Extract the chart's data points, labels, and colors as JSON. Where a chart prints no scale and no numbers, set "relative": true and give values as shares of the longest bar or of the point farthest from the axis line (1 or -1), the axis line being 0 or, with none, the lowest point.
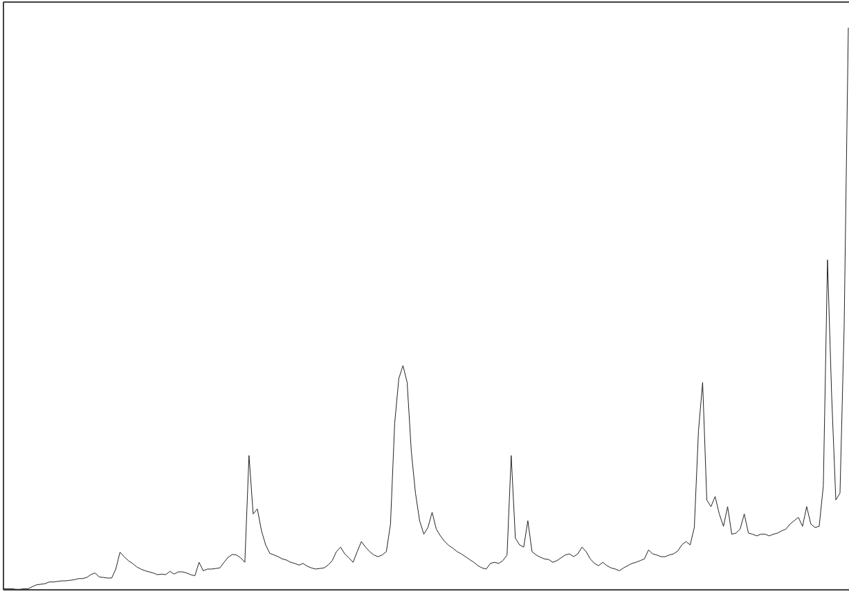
{
  "chart_data": {
    "type": "line",
    "relative": true,
    "categories": [
      null,
      null,
      null,
      null,
      null,
      null,
      null,
      null,
      null,
      null,
      null,
      null,
      null,
      null,
      null,
      null,
      null,
      null,
      null,
      null,
      null,
      null,
      null,
      null,
      null,
      null,
      null,
      null,
      null,
      null,
      null,
      null,
      null,
      null,
      null,
      null,
      null,
      null,
      null,
      null,
      null,
      null,
      null,
      null,
      null,
      null,
      null,
      null,
      null,
      null,
      null,
      null,
      null,
      null,
      null,
      null,
      null,
      null,
      null,
      null,
      null,
      null,
      null,
      null,
      null,
      null,
      null,
      null,
      null,
      null,
      null,
      null,
      null,
      null,
      null,
      null,
      null,
      null,
      null,
      null,
      null,
      null,
      null,
      null,
      null,
      null,
      null,
      null,
      null,
      null,
      null,
      null,
      null,
      null,
      null,
      null,
      null,
      null,
      null,
      null,
      null,
      null,
      null,
      null,
      null,
      null,
      null,
      null,
      null,
      null,
      null,
      null,
      null,
      null,
      null,
      null,
      null,
      null,
      null,
      null,
      null,
      null,
      null,
      null,
      null,
      null,
      null,
      null,
      null,
      null,
      null,
      null,
      null,
      null,
      null,
      null,
      null,
      null,
      null,
      null,
      null,
      null,
      null,
      null,
      null,
      null,
      null,
      null,
      null,
      null,
      null,
      null,
      null,
      null,
      null,
      null,
      null,
      null,
      null,
      null,
      null,
      null,
      null,
      null,
      null,
      null,
      null,
      null,
      null,
      null,
      null,
      null,
      null,
      null,
      null,
      null,
      null,
      null,
      null,
      null,
      null,
      null,
      null,
      null,
      null,
      null,
      null,
      null,
      null,
      null,
      null,
      null,
      null,
      null,
      null,
      null,
      null,
      null,
      null,
      null,
      null,
      null,
      null,
      null
    ],
    "series": [
      {
        "color": "#222222",
        "values": [
          0.002,
          0.002,
          0.002,
          0.001,
          0.001,
          0.002,
          0.002,
          0.006,
          0.009,
          0.01,
          0.011,
          0.014,
          0.014,
          0.015,
          0.016,
          0.016,
          0.017,
          0.018,
          0.02,
          0.02,
          0.022,
          0.027,
          0.03,
          0.023,
          0.022,
          0.021,
          0.021,
          0.037,
          0.067,
          0.059,
          0.052,
          0.047,
          0.041,
          0.037,
          0.034,
          0.032,
          0.03,
          0.027,
          0.028,
          0.027,
          0.033,
          0.028,
          0.032,
          0.032,
          0.03,
          0.027,
          0.025,
          0.049,
          0.034,
          0.037,
          0.037,
          0.038,
          0.039,
          0.049,
          0.058,
          0.063,
          0.062,
          0.057,
          0.049,
          0.239,
          0.135,
          0.144,
          0.105,
          0.08,
          0.065,
          0.062,
          0.059,
          0.055,
          0.053,
          0.049,
          0.047,
          0.044,
          0.047,
          0.042,
          0.039,
          0.037,
          0.038,
          0.039,
          0.044,
          0.052,
          0.068,
          0.076,
          0.064,
          0.057,
          0.049,
          0.068,
          0.086,
          0.076,
          0.068,
          0.062,
          0.059,
          0.062,
          0.068,
          0.117,
          0.296,
          0.376,
          0.399,
          0.369,
          0.246,
          0.172,
          0.123,
          0.099,
          0.111,
          0.138,
          0.108,
          0.096,
          0.086,
          0.079,
          0.074,
          0.068,
          0.064,
          0.059,
          0.054,
          0.049,
          0.043,
          0.039,
          0.037,
          0.047,
          0.049,
          0.047,
          0.052,
          0.062,
          0.239,
          0.092,
          0.08,
          0.076,
          0.123,
          0.068,
          0.062,
          0.058,
          0.055,
          0.054,
          0.049,
          0.052,
          0.057,
          0.062,
          0.064,
          0.059,
          0.064,
          0.076,
          0.068,
          0.055,
          0.047,
          0.043,
          0.049,
          0.043,
          0.039,
          0.037,
          0.034,
          0.039,
          0.043,
          0.047,
          0.049,
          0.052,
          0.055,
          0.071,
          0.064,
          0.062,
          0.059,
          0.059,
          0.062,
          0.064,
          0.069,
          0.08,
          0.086,
          0.08,
          0.111,
          0.283,
          0.369,
          0.16,
          0.148,
          0.166,
          0.135,
          0.113,
          0.148,
          0.099,
          0.101,
          0.108,
          0.135,
          0.101,
          0.099,
          0.096,
          0.099,
          0.099,
          0.096,
          0.099,
          0.101,
          0.105,
          0.108,
          0.117,
          0.123,
          0.129,
          0.113,
          0.148,
          0.117,
          0.111,
          0.113,
          0.185,
          0.587,
          0.345,
          0.16,
          0.172,
          0.468,
          1
        ]
      }
    ]
  }
}
